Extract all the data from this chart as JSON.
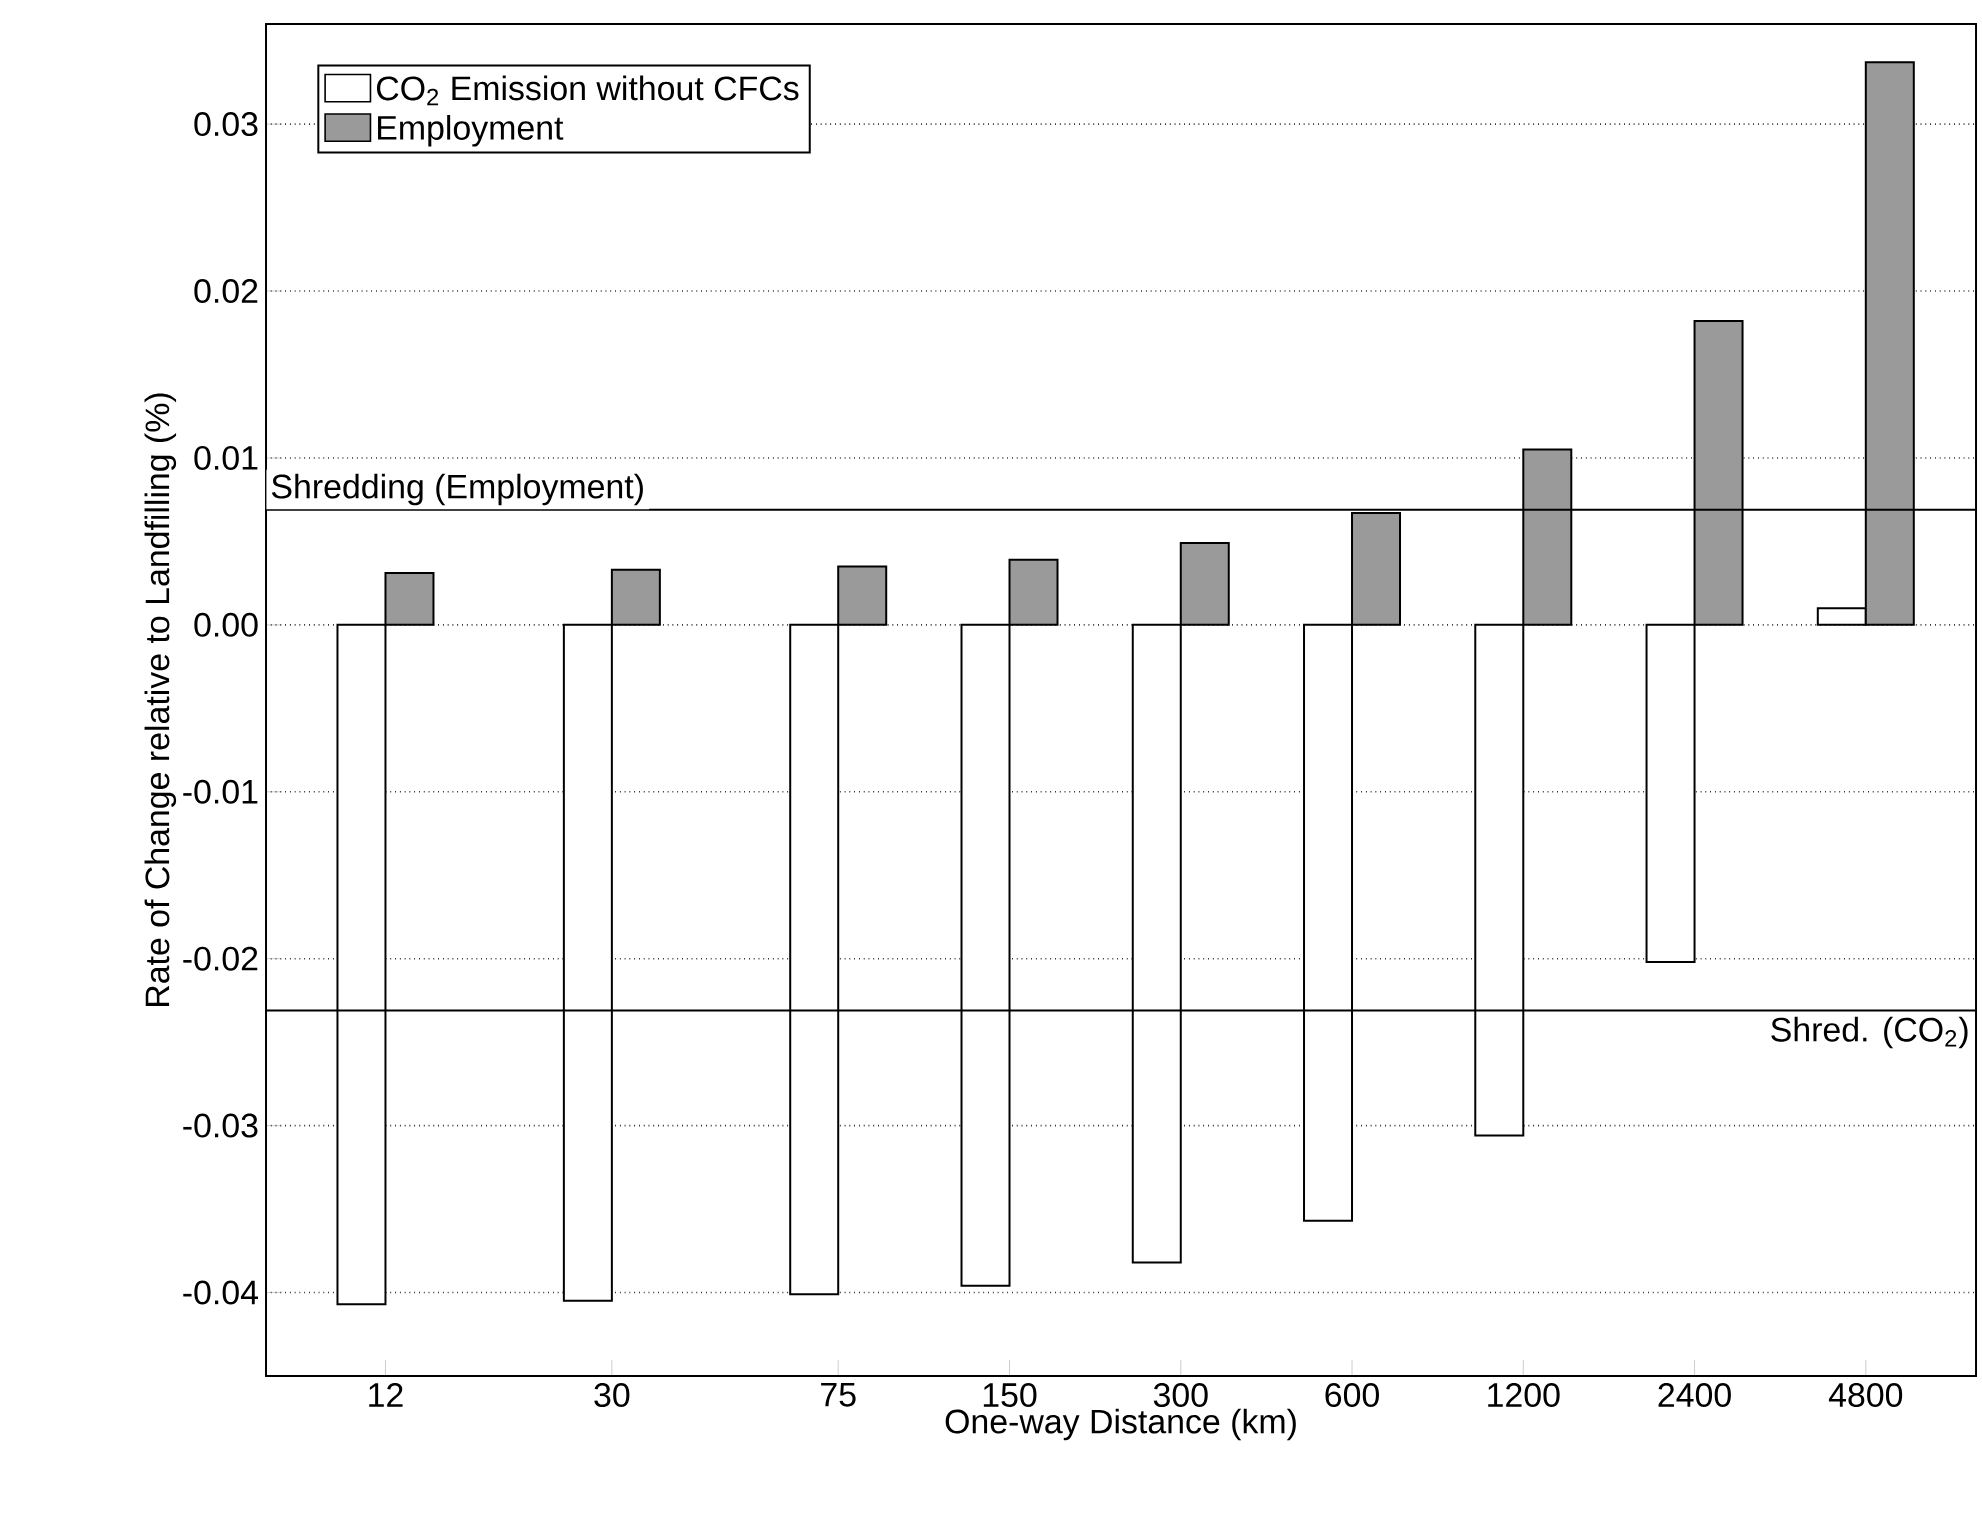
{
  "chart_data": {
    "type": "bar",
    "xlabel": "One-way Distance (km)",
    "ylabel": "Rate of Change relative to Landfilling (%)",
    "x": [
      12,
      30,
      75,
      150,
      300,
      600,
      1200,
      2400,
      4800
    ],
    "log": "x",
    "xlim": [
      7.4,
      7500
    ],
    "xticks": [
      12,
      30,
      75,
      150,
      300,
      600,
      1200,
      2400,
      4800
    ],
    "ylim": [
      -0.045,
      0.036
    ],
    "yticks": [
      -0.04,
      -0.03,
      -0.02,
      -0.01,
      {
        "value": 0,
        "label": "0.00"
      },
      0.01,
      0.02,
      0.03
    ],
    "series": [
      {
        "name": "CO$_{2}$ Emission without CFCs",
        "color": "#ffffff",
        "values": [
          -0.0407,
          -0.0405,
          -0.0401,
          -0.0396,
          -0.0382,
          -0.0357,
          -0.0306,
          -0.0202,
          0.001
        ]
      },
      {
        "name": "Employment",
        "color": "#9a9a9a",
        "values": [
          0.0031,
          0.0033,
          0.0035,
          0.0039,
          0.0049,
          0.0067,
          0.0105,
          0.0182,
          0.0337
        ]
      }
    ],
    "ref_lines": [
      {
        "axis": "y",
        "value": 0.0069,
        "label": "Shredding (Employment)",
        "color": "#000000"
      },
      {
        "axis": "y",
        "value": -0.0231,
        "label": "Shred. (CO$_{2}$)",
        "color": "#000000"
      }
    ],
    "grid": "y",
    "legend": "top left"
  }
}
